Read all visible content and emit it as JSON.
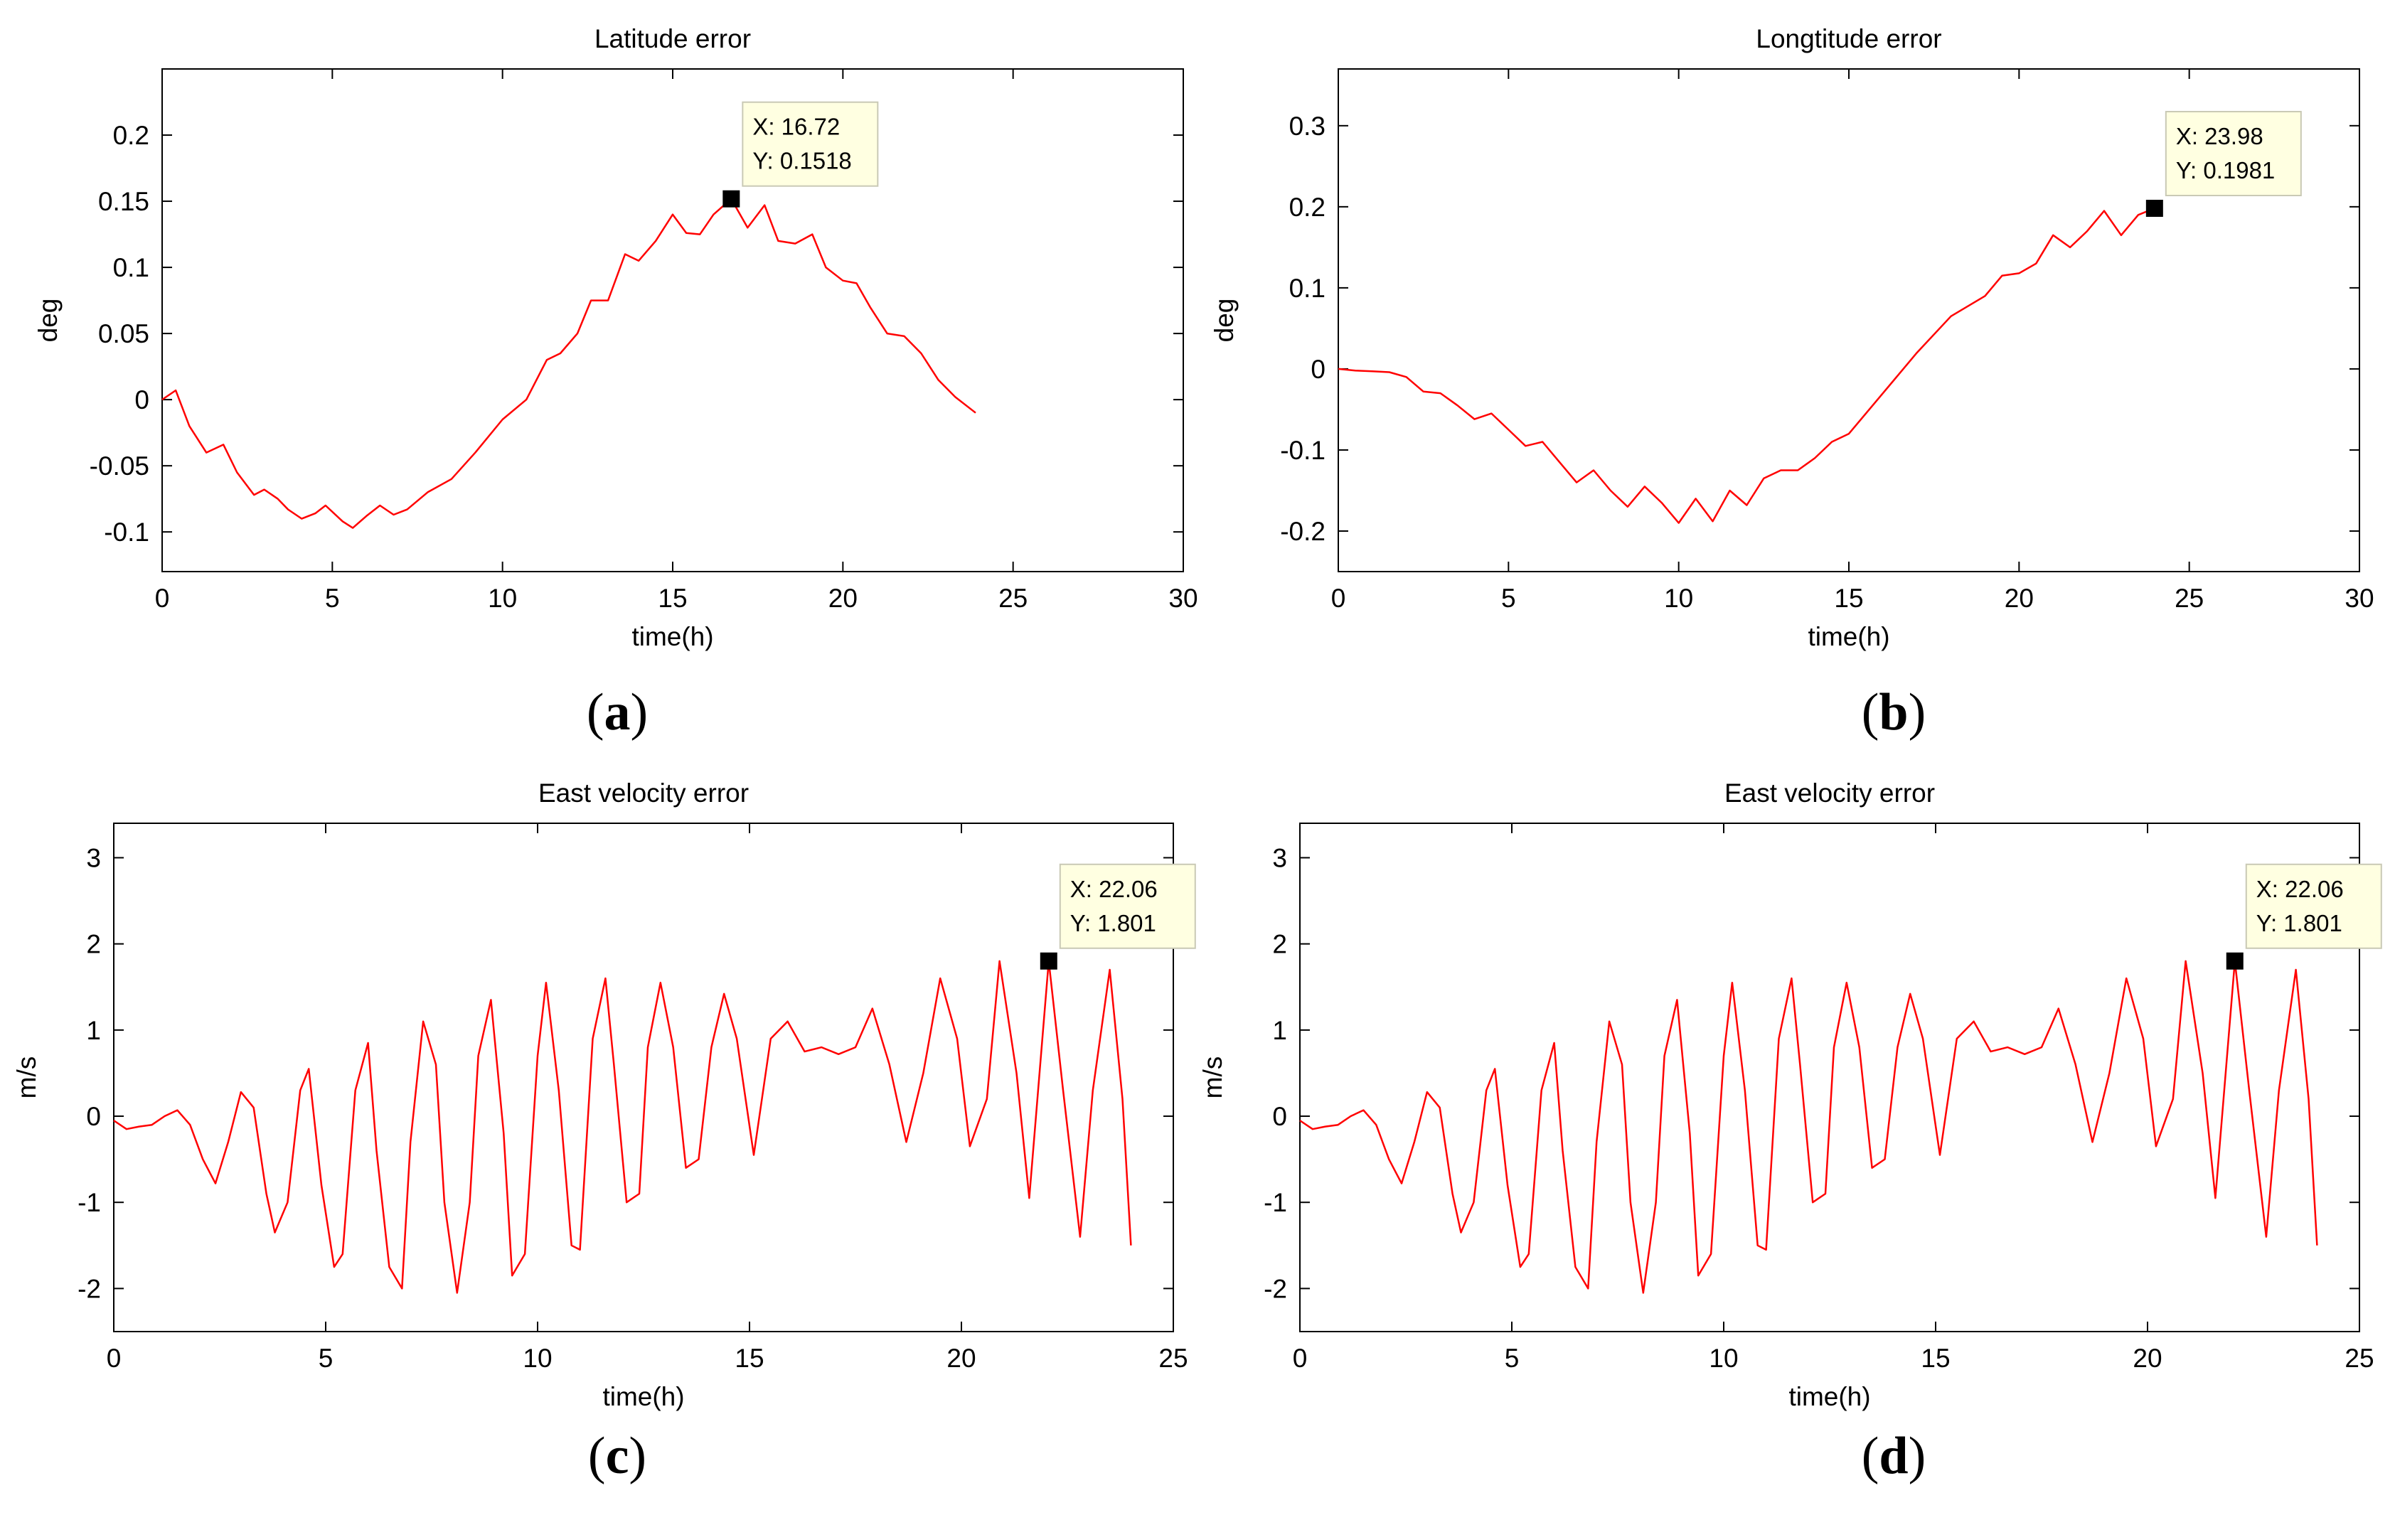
{
  "chart_data": [
    {
      "id": "a",
      "type": "line",
      "title": "Latitude error",
      "xlabel": "time(h)",
      "ylabel": "deg",
      "xlim": [
        0,
        30
      ],
      "ylim": [
        -0.13,
        0.25
      ],
      "xticks": [
        0,
        5,
        10,
        15,
        20,
        25,
        30
      ],
      "yticks": [
        -0.1,
        -0.05,
        0,
        0.05,
        0.1,
        0.15,
        0.2
      ],
      "ytick_labels": [
        "-0.1",
        "-0.05",
        "0",
        "0.05",
        "0.1",
        "0.15",
        "0.2"
      ],
      "series": [
        {
          "name": "Latitude error",
          "color": "#ff0000",
          "x": [
            0,
            0.4,
            0.8,
            1.3,
            1.8,
            2.2,
            2.7,
            3.0,
            3.4,
            3.7,
            4.1,
            4.5,
            4.8,
            5.3,
            5.6,
            6.0,
            6.4,
            6.8,
            7.2,
            7.8,
            8.5,
            9.2,
            10.0,
            10.7,
            11.3,
            11.7,
            12.2,
            12.6,
            13.1,
            13.6,
            14.0,
            14.5,
            15.0,
            15.4,
            15.8,
            16.2,
            16.72,
            17.2,
            17.7,
            18.1,
            18.6,
            19.1,
            19.5,
            20.0,
            20.4,
            20.8,
            21.3,
            21.8,
            22.3,
            22.8,
            23.3,
            23.9
          ],
          "y": [
            0.0,
            0.007,
            -0.02,
            -0.04,
            -0.034,
            -0.055,
            -0.072,
            -0.068,
            -0.075,
            -0.083,
            -0.09,
            -0.086,
            -0.08,
            -0.092,
            -0.097,
            -0.088,
            -0.08,
            -0.087,
            -0.083,
            -0.07,
            -0.06,
            -0.04,
            -0.015,
            0.0,
            0.03,
            0.035,
            0.05,
            0.075,
            0.075,
            0.11,
            0.105,
            0.12,
            0.14,
            0.126,
            0.125,
            0.14,
            0.1518,
            0.13,
            0.147,
            0.12,
            0.118,
            0.125,
            0.1,
            0.09,
            0.088,
            0.07,
            0.05,
            0.048,
            0.035,
            0.015,
            0.002,
            -0.01
          ]
        }
      ],
      "datatip": {
        "x": 16.72,
        "y": 0.1518,
        "x_label": "X: 16.72",
        "y_label": "Y: 0.1518"
      }
    },
    {
      "id": "b",
      "type": "line",
      "title": "Longtitude error",
      "xlabel": "time(h)",
      "ylabel": "deg",
      "xlim": [
        0,
        30
      ],
      "ylim": [
        -0.25,
        0.37
      ],
      "xticks": [
        0,
        5,
        10,
        15,
        20,
        25,
        30
      ],
      "yticks": [
        -0.2,
        -0.1,
        0,
        0.1,
        0.2,
        0.3
      ],
      "ytick_labels": [
        "-0.2",
        "-0.1",
        "0",
        "0.1",
        "0.2",
        "0.3"
      ],
      "series": [
        {
          "name": "Longtitude error",
          "color": "#ff0000",
          "x": [
            0,
            0.5,
            1.0,
            1.5,
            2.0,
            2.5,
            3.0,
            3.5,
            4.0,
            4.5,
            5.0,
            5.5,
            6.0,
            6.5,
            7.0,
            7.5,
            8.0,
            8.5,
            9.0,
            9.5,
            10.0,
            10.5,
            11.0,
            11.5,
            12.0,
            12.5,
            13.0,
            13.5,
            14.0,
            14.5,
            15.0,
            16.0,
            17.0,
            18.0,
            19.0,
            19.5,
            20.0,
            20.5,
            21.0,
            21.5,
            22.0,
            22.5,
            23.0,
            23.5,
            23.98
          ],
          "y": [
            0.0,
            -0.002,
            -0.003,
            -0.004,
            -0.01,
            -0.028,
            -0.03,
            -0.045,
            -0.062,
            -0.055,
            -0.075,
            -0.095,
            -0.09,
            -0.115,
            -0.14,
            -0.125,
            -0.15,
            -0.17,
            -0.145,
            -0.165,
            -0.19,
            -0.16,
            -0.188,
            -0.15,
            -0.168,
            -0.135,
            -0.125,
            -0.125,
            -0.11,
            -0.09,
            -0.08,
            -0.03,
            0.02,
            0.065,
            0.09,
            0.115,
            0.118,
            0.13,
            0.165,
            0.15,
            0.17,
            0.195,
            0.165,
            0.19,
            0.1981
          ]
        }
      ],
      "datatip": {
        "x": 23.98,
        "y": 0.1981,
        "x_label": "X: 23.98",
        "y_label": "Y: 0.1981"
      }
    },
    {
      "id": "c",
      "type": "line",
      "title": "East velocity error",
      "xlabel": "time(h)",
      "ylabel": "m/s",
      "xlim": [
        0,
        25
      ],
      "ylim": [
        -2.5,
        3.4
      ],
      "xticks": [
        0,
        5,
        10,
        15,
        20,
        25
      ],
      "yticks": [
        -2,
        -1,
        0,
        1,
        2,
        3
      ],
      "ytick_labels": [
        "-2",
        "-1",
        "0",
        "1",
        "2",
        "3"
      ],
      "series": [
        {
          "name": "East velocity error",
          "color": "#ff0000",
          "x": [
            0,
            0.3,
            0.6,
            0.9,
            1.2,
            1.5,
            1.8,
            2.1,
            2.4,
            2.7,
            3.0,
            3.3,
            3.6,
            3.8,
            4.1,
            4.4,
            4.6,
            4.9,
            5.2,
            5.4,
            5.7,
            6.0,
            6.2,
            6.5,
            6.8,
            7.0,
            7.3,
            7.6,
            7.8,
            8.1,
            8.4,
            8.6,
            8.9,
            9.2,
            9.4,
            9.7,
            10.0,
            10.2,
            10.5,
            10.8,
            11.0,
            11.3,
            11.6,
            11.8,
            12.1,
            12.4,
            12.6,
            12.9,
            13.2,
            13.5,
            13.8,
            14.1,
            14.4,
            14.7,
            15.1,
            15.5,
            15.9,
            16.3,
            16.7,
            17.1,
            17.5,
            17.9,
            18.3,
            18.7,
            19.1,
            19.5,
            19.9,
            20.2,
            20.6,
            20.9,
            21.3,
            21.6,
            22.06,
            22.4,
            22.8,
            23.1,
            23.5,
            23.8,
            24.0
          ],
          "y": [
            -0.05,
            -0.15,
            -0.12,
            -0.1,
            0.0,
            0.07,
            -0.1,
            -0.5,
            -0.78,
            -0.3,
            0.28,
            0.1,
            -0.9,
            -1.35,
            -1.0,
            0.3,
            0.55,
            -0.8,
            -1.75,
            -1.6,
            0.3,
            0.85,
            -0.4,
            -1.75,
            -2.0,
            -0.3,
            1.1,
            0.6,
            -1.0,
            -2.05,
            -1.0,
            0.7,
            1.35,
            -0.2,
            -1.85,
            -1.6,
            0.7,
            1.55,
            0.3,
            -1.5,
            -1.55,
            0.9,
            1.6,
            0.6,
            -1.0,
            -0.9,
            0.8,
            1.55,
            0.8,
            -0.6,
            -0.5,
            0.8,
            1.42,
            0.9,
            -0.45,
            0.9,
            1.1,
            0.75,
            0.8,
            0.72,
            0.8,
            1.25,
            0.6,
            -0.3,
            0.5,
            1.6,
            0.9,
            -0.35,
            0.2,
            1.8,
            0.5,
            -0.95,
            1.801,
            0.3,
            -1.4,
            0.3,
            1.7,
            0.2,
            -1.5
          ]
        }
      ],
      "datatip": {
        "x": 22.06,
        "y": 1.801,
        "x_label": "X: 22.06",
        "y_label": "Y: 1.801"
      }
    },
    {
      "id": "d",
      "type": "line",
      "title": "East velocity error",
      "xlabel": "time(h)",
      "ylabel": "m/s",
      "xlim": [
        0,
        25
      ],
      "ylim": [
        -2.5,
        3.4
      ],
      "xticks": [
        0,
        5,
        10,
        15,
        20,
        25
      ],
      "yticks": [
        -2,
        -1,
        0,
        1,
        2,
        3
      ],
      "ytick_labels": [
        "-2",
        "-1",
        "0",
        "1",
        "2",
        "3"
      ],
      "series": [
        {
          "name": "East velocity error",
          "color": "#ff0000",
          "x": [
            0,
            0.3,
            0.6,
            0.9,
            1.2,
            1.5,
            1.8,
            2.1,
            2.4,
            2.7,
            3.0,
            3.3,
            3.6,
            3.8,
            4.1,
            4.4,
            4.6,
            4.9,
            5.2,
            5.4,
            5.7,
            6.0,
            6.2,
            6.5,
            6.8,
            7.0,
            7.3,
            7.6,
            7.8,
            8.1,
            8.4,
            8.6,
            8.9,
            9.2,
            9.4,
            9.7,
            10.0,
            10.2,
            10.5,
            10.8,
            11.0,
            11.3,
            11.6,
            11.8,
            12.1,
            12.4,
            12.6,
            12.9,
            13.2,
            13.5,
            13.8,
            14.1,
            14.4,
            14.7,
            15.1,
            15.5,
            15.9,
            16.3,
            16.7,
            17.1,
            17.5,
            17.9,
            18.3,
            18.7,
            19.1,
            19.5,
            19.9,
            20.2,
            20.6,
            20.9,
            21.3,
            21.6,
            22.06,
            22.4,
            22.8,
            23.1,
            23.5,
            23.8,
            24.0
          ],
          "y": [
            -0.05,
            -0.15,
            -0.12,
            -0.1,
            0.0,
            0.07,
            -0.1,
            -0.5,
            -0.78,
            -0.3,
            0.28,
            0.1,
            -0.9,
            -1.35,
            -1.0,
            0.3,
            0.55,
            -0.8,
            -1.75,
            -1.6,
            0.3,
            0.85,
            -0.4,
            -1.75,
            -2.0,
            -0.3,
            1.1,
            0.6,
            -1.0,
            -2.05,
            -1.0,
            0.7,
            1.35,
            -0.2,
            -1.85,
            -1.6,
            0.7,
            1.55,
            0.3,
            -1.5,
            -1.55,
            0.9,
            1.6,
            0.6,
            -1.0,
            -0.9,
            0.8,
            1.55,
            0.8,
            -0.6,
            -0.5,
            0.8,
            1.42,
            0.9,
            -0.45,
            0.9,
            1.1,
            0.75,
            0.8,
            0.72,
            0.8,
            1.25,
            0.6,
            -0.3,
            0.5,
            1.6,
            0.9,
            -0.35,
            0.2,
            1.8,
            0.5,
            -0.95,
            1.801,
            0.3,
            -1.4,
            0.3,
            1.7,
            0.2,
            -1.5
          ]
        }
      ],
      "datatip": {
        "x": 22.06,
        "y": 1.801,
        "x_label": "X: 22.06",
        "y_label": "Y: 1.801"
      }
    }
  ],
  "captions": {
    "a": {
      "open": "(",
      "letter": "a",
      "close": ")"
    },
    "b": {
      "open": "(",
      "letter": "b",
      "close": ")"
    },
    "c": {
      "open": "(",
      "letter": "c",
      "close": ")"
    },
    "d": {
      "open": "(",
      "letter": "d",
      "close": ")"
    }
  },
  "colors": {
    "line": "#ff0000",
    "axis": "#000000",
    "datatip_bg": "#ffffe1",
    "datatip_border": "#c9c9b5",
    "marker": "#000000"
  }
}
